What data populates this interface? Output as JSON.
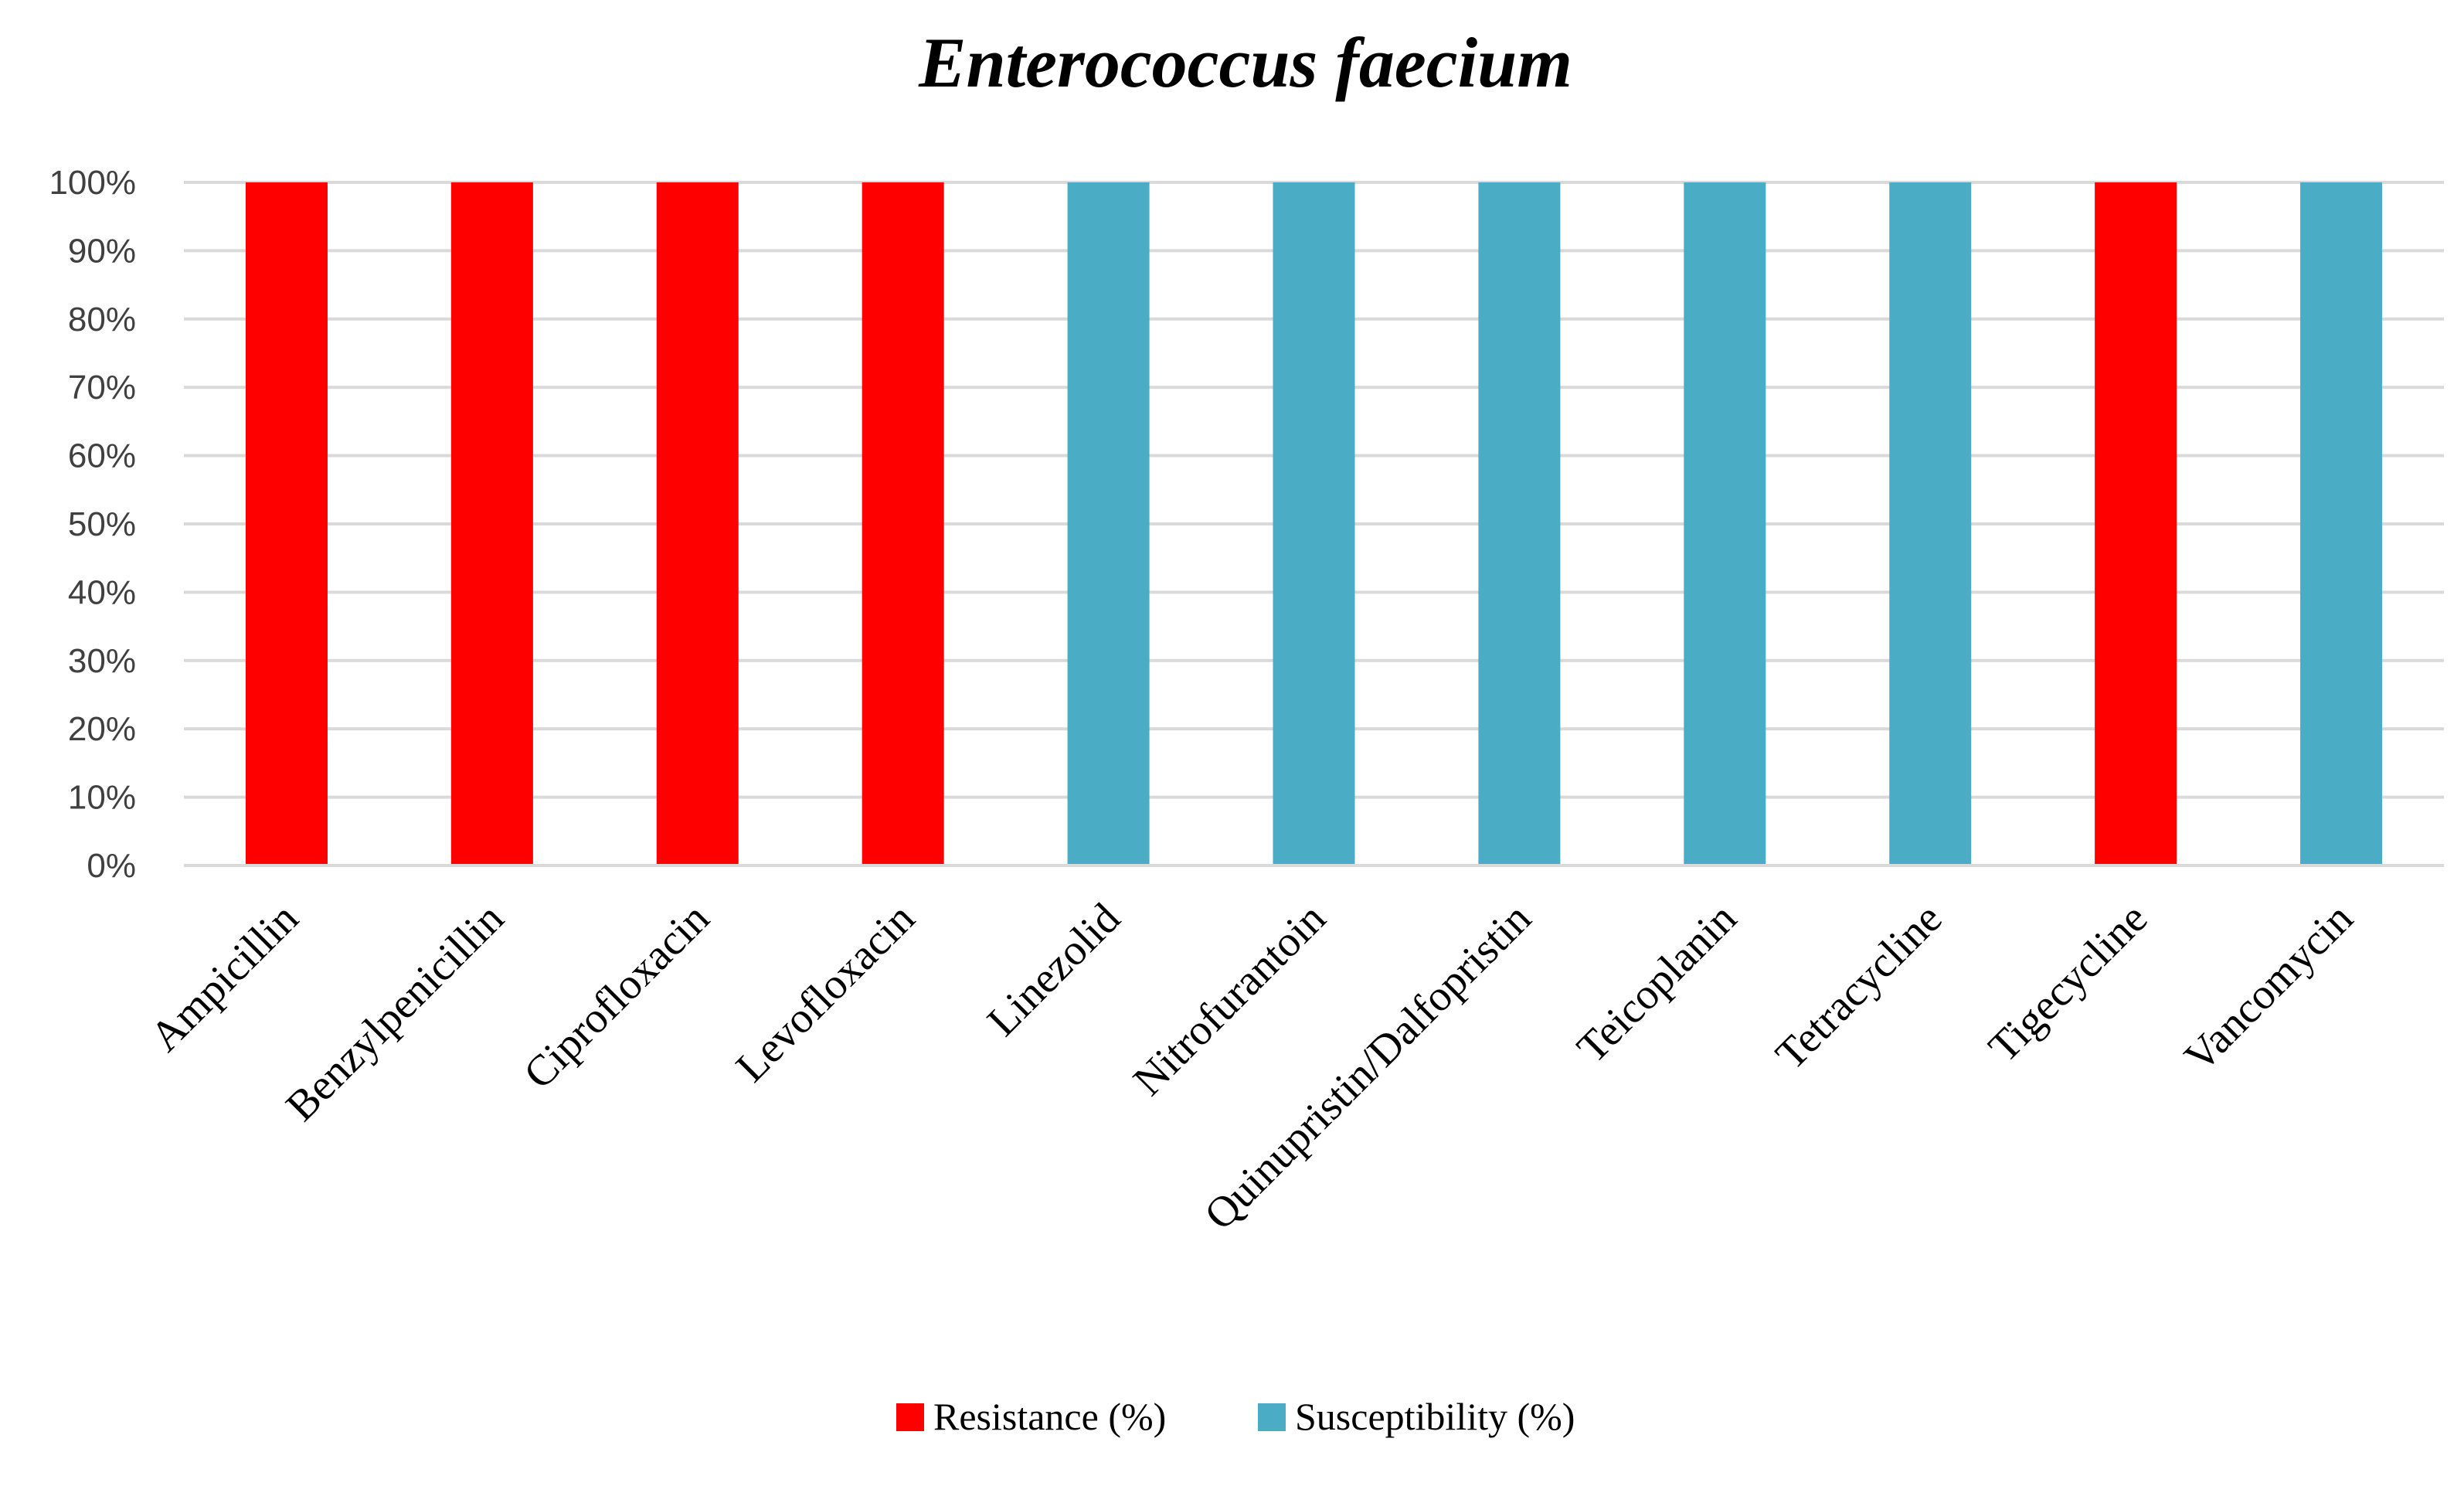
{
  "chart_data": {
    "type": "bar",
    "title": "Enterococcus faecium",
    "xlabel": "",
    "ylabel": "",
    "ylim": [
      0,
      100
    ],
    "y_ticks": [
      "0%",
      "10%",
      "20%",
      "30%",
      "40%",
      "50%",
      "60%",
      "70%",
      "80%",
      "90%",
      "100%"
    ],
    "grid": true,
    "legend_position": "bottom",
    "categories": [
      "Ampicillin",
      "Benzylpenicillin",
      "Ciprofloxacin",
      "Levofloxacin",
      "Linezolid",
      "Nitrofurantoin",
      "Quinupristin/Dalfopristin",
      "Teicoplanin",
      "Tetracycline",
      "Tigecycline",
      "Vancomycin"
    ],
    "series": [
      {
        "name": "Resistance (%)",
        "color": "#ff0000",
        "values": [
          100,
          100,
          100,
          100,
          null,
          null,
          null,
          null,
          null,
          100,
          null
        ]
      },
      {
        "name": "Susceptibility (%)",
        "color": "#4bacc6",
        "values": [
          null,
          null,
          null,
          null,
          100,
          100,
          100,
          100,
          100,
          null,
          100
        ]
      }
    ]
  }
}
